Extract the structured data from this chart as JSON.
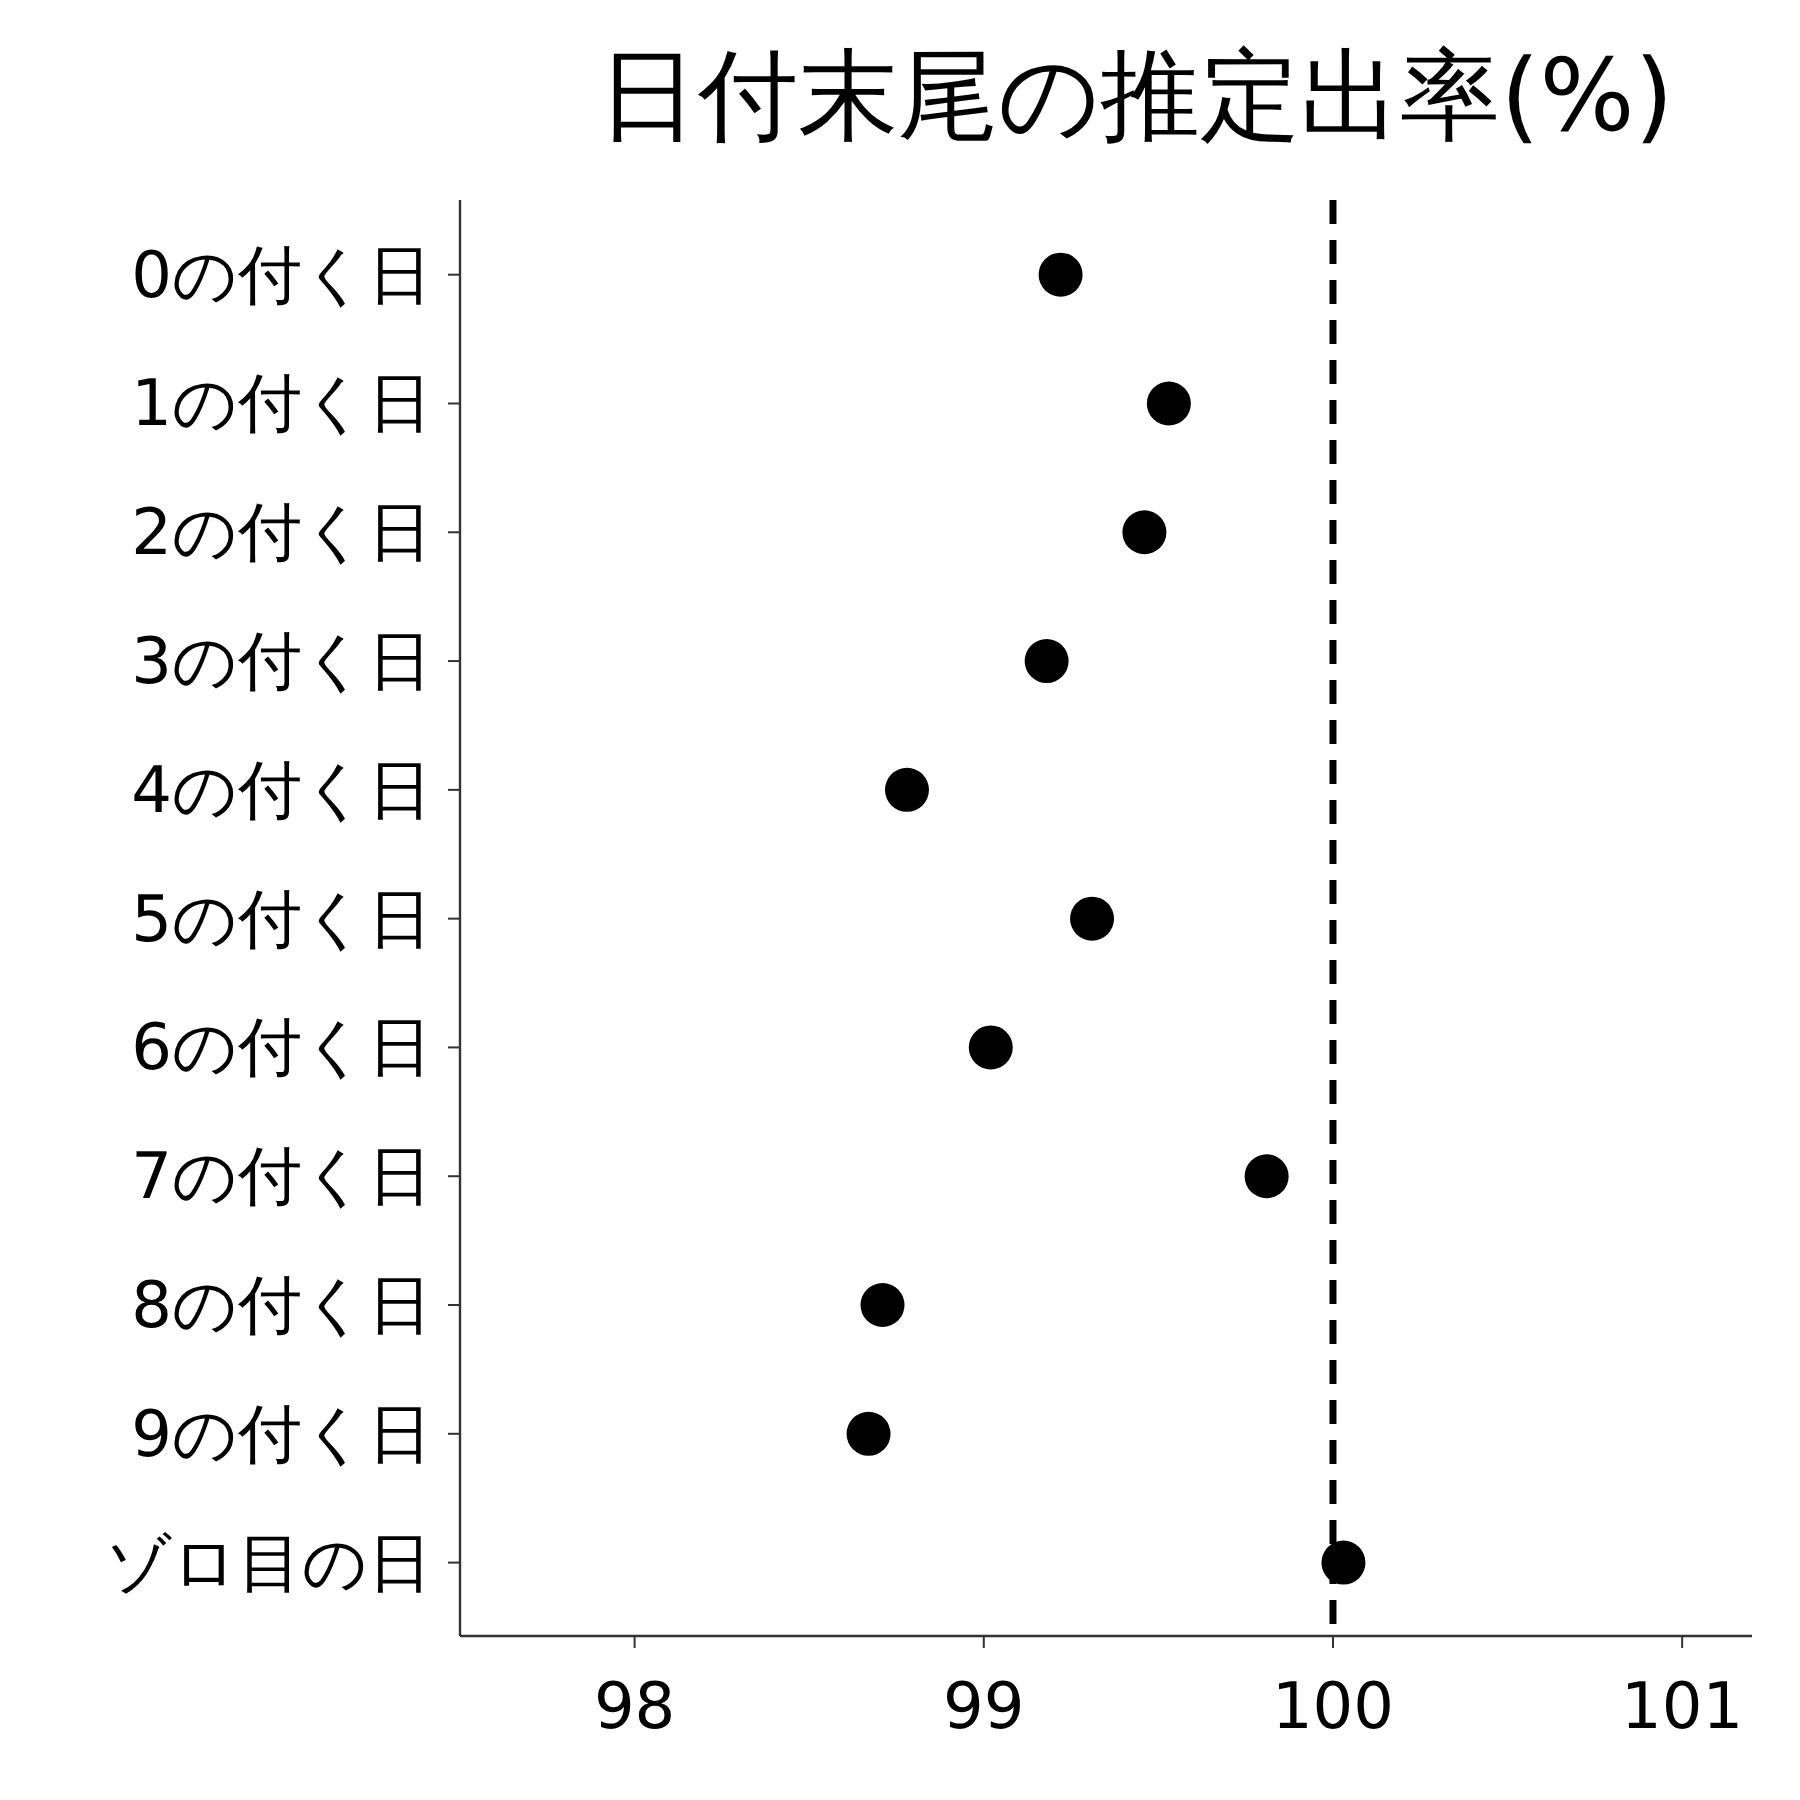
{
  "chart_data": {
    "type": "scatter",
    "title": "日付末尾の推定出率(%)",
    "orientation": "horizontal",
    "marker": "circle",
    "categories": [
      "0の付く日",
      "1の付く日",
      "2の付く日",
      "3の付く日",
      "4の付く日",
      "5の付く日",
      "6の付く日",
      "7の付く日",
      "8の付く日",
      "9の付く日",
      "ゾロ目の日"
    ],
    "series": [
      {
        "color": "#000000",
        "values": [
          99.22,
          99.53,
          99.46,
          99.18,
          98.78,
          99.31,
          99.02,
          99.81,
          98.71,
          98.67,
          100.03
        ]
      }
    ],
    "xlim": [
      97.5,
      101.2
    ],
    "xticks": [
      98,
      99,
      100,
      101
    ],
    "ref_lines": [
      {
        "axis": "x",
        "value": 100,
        "line_style": "dashed",
        "color": "#000000"
      }
    ]
  }
}
